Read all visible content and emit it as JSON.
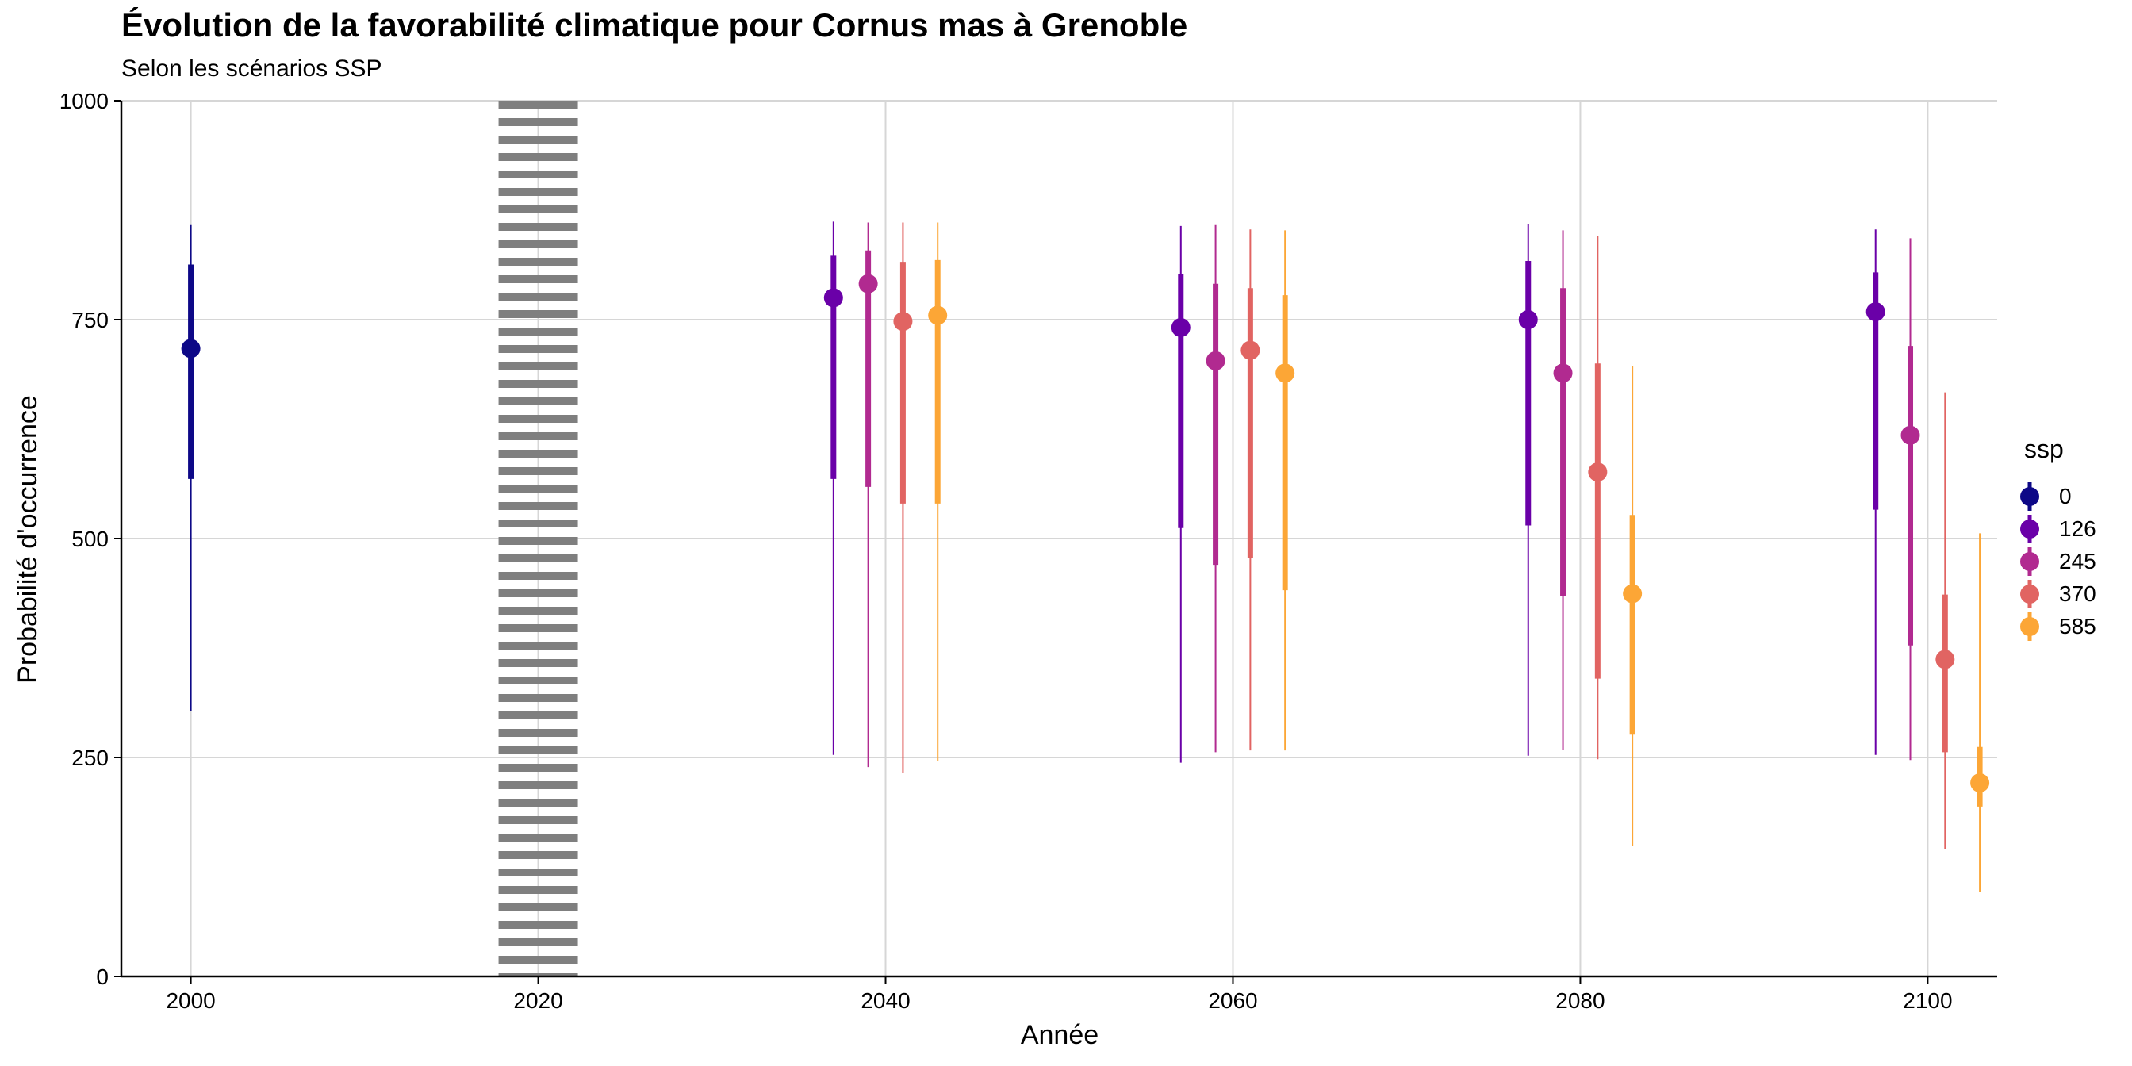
{
  "chart_data": {
    "type": "pointrange",
    "title": "Évolution de la favorabilité climatique pour Cornus mas à Grenoble",
    "subtitle": "Selon les scénarios SSP",
    "xlabel": "Année",
    "ylabel": "Probabilité d'occurrence",
    "xlim": [
      1996,
      2104
    ],
    "ylim": [
      0,
      1000
    ],
    "x_ticks": [
      2000,
      2020,
      2040,
      2060,
      2080,
      2100
    ],
    "y_ticks": [
      0,
      250,
      500,
      750,
      1000
    ],
    "grid": true,
    "legend_title": "ssp",
    "legend_position": "right",
    "reference_line": {
      "x": 2020,
      "style": "dotted",
      "color": "#7f7f7f"
    },
    "series": [
      {
        "name": "0",
        "color": "#0d0887",
        "points": [
          {
            "x": 2000,
            "y": 717,
            "inner": [
              568,
              813
            ],
            "outer": [
              303,
              858
            ]
          }
        ]
      },
      {
        "name": "126",
        "color": "#6a00a8",
        "points": [
          {
            "x": 2037,
            "y": 775,
            "inner": [
              568,
              823
            ],
            "outer": [
              253,
              862
            ]
          },
          {
            "x": 2057,
            "y": 741,
            "inner": [
              512,
              802
            ],
            "outer": [
              244,
              857
            ]
          },
          {
            "x": 2077,
            "y": 750,
            "inner": [
              515,
              817
            ],
            "outer": [
              252,
              859
            ]
          },
          {
            "x": 2097,
            "y": 759,
            "inner": [
              533,
              804
            ],
            "outer": [
              253,
              853
            ]
          }
        ]
      },
      {
        "name": "245",
        "color": "#b12a90",
        "points": [
          {
            "x": 2039,
            "y": 791,
            "inner": [
              559,
              829
            ],
            "outer": [
              239,
              861
            ]
          },
          {
            "x": 2059,
            "y": 703,
            "inner": [
              470,
              791
            ],
            "outer": [
              256,
              858
            ]
          },
          {
            "x": 2079,
            "y": 689,
            "inner": [
              434,
              786
            ],
            "outer": [
              259,
              852
            ]
          },
          {
            "x": 2099,
            "y": 618,
            "inner": [
              378,
              720
            ],
            "outer": [
              247,
              843
            ]
          }
        ]
      },
      {
        "name": "370",
        "color": "#e16462",
        "points": [
          {
            "x": 2041,
            "y": 748,
            "inner": [
              540,
              816
            ],
            "outer": [
              232,
              861
            ]
          },
          {
            "x": 2061,
            "y": 715,
            "inner": [
              478,
              786
            ],
            "outer": [
              258,
              853
            ]
          },
          {
            "x": 2081,
            "y": 576,
            "inner": [
              340,
              700
            ],
            "outer": [
              248,
              846
            ]
          },
          {
            "x": 2101,
            "y": 362,
            "inner": [
              256,
              436
            ],
            "outer": [
              145,
              667
            ]
          }
        ]
      },
      {
        "name": "585",
        "color": "#fca636",
        "points": [
          {
            "x": 2043,
            "y": 755,
            "inner": [
              540,
              818
            ],
            "outer": [
              246,
              861
            ]
          },
          {
            "x": 2063,
            "y": 689,
            "inner": [
              441,
              778
            ],
            "outer": [
              258,
              852
            ]
          },
          {
            "x": 2083,
            "y": 437,
            "inner": [
              276,
              527
            ],
            "outer": [
              149,
              697
            ]
          },
          {
            "x": 2103,
            "y": 221,
            "inner": [
              194,
              262
            ],
            "outer": [
              96,
              506
            ]
          }
        ]
      }
    ]
  }
}
